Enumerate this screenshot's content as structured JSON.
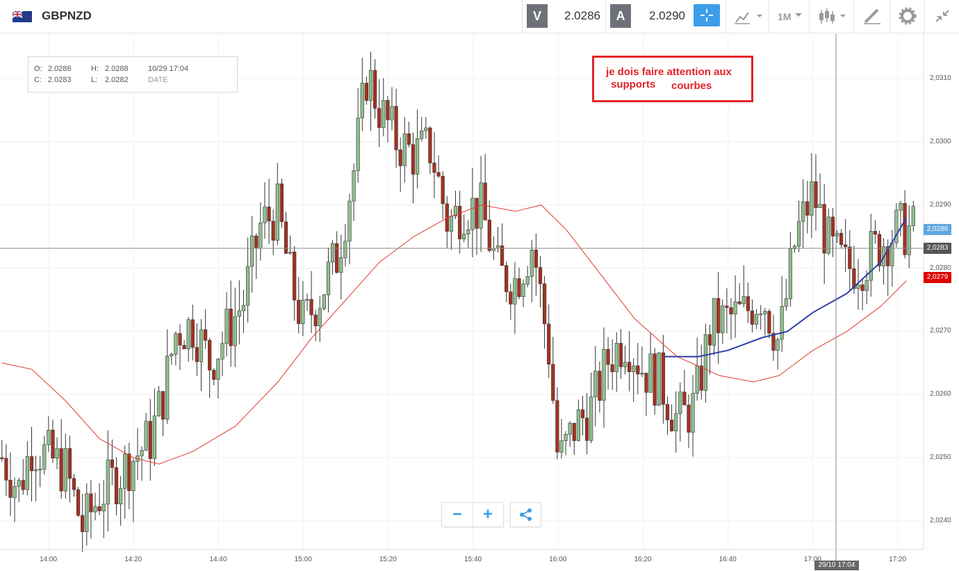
{
  "header": {
    "symbol": "GBPNZD",
    "sell_label": "V",
    "sell_price": "2.0286",
    "buy_label": "A",
    "buy_price": "2.0290",
    "timeframe": "1M"
  },
  "ohlc": {
    "o_label": "O:",
    "o_value": "2.0286",
    "h_label": "H:",
    "h_value": "2.0288",
    "c_label": "C:",
    "c_value": "2.0283",
    "l_label": "L:",
    "l_value": "2.0282",
    "datetime": "10/29 17:04",
    "date_label": "DATE"
  },
  "annotation": {
    "line1": "je dois faire attention aux",
    "line2a": "supports",
    "line2b": "courbes"
  },
  "zoom": {
    "minus": "−",
    "plus": "+"
  },
  "price_labels": {
    "current": "2,0286",
    "crosshair": "2,0283",
    "ma": "2,0279"
  },
  "crosshair_date": "29/10 17:04",
  "colors": {
    "up": "#8fbf8f",
    "down": "#a33222",
    "ma_red": "#e03a2f",
    "ma_blue": "#2f3fa8",
    "accent_blue": "#3d9de8",
    "label_red": "#e00000"
  },
  "chart_data": {
    "type": "candlestick",
    "ylim": [
      2.0236,
      2.0318
    ],
    "y_ticks": [
      "2,0310",
      "2,0300",
      "2,0290",
      "2,0280",
      "2,0270",
      "2,0260",
      "2,0250",
      "2,0240"
    ],
    "x_ticks": [
      "14:00",
      "14:20",
      "14:40",
      "15:00",
      "15:20",
      "15:40",
      "16:00",
      "16:20",
      "16:40",
      "17:00",
      "17:20"
    ],
    "price_points": [
      {
        "t": "13:49",
        "p": 2.025
      },
      {
        "t": "13:53",
        "p": 2.0245
      },
      {
        "t": "13:56",
        "p": 2.0252
      },
      {
        "t": "14:00",
        "p": 2.025
      },
      {
        "t": "14:04",
        "p": 2.0248
      },
      {
        "t": "14:08",
        "p": 2.0239
      },
      {
        "t": "14:12",
        "p": 2.0244
      },
      {
        "t": "14:16",
        "p": 2.0247
      },
      {
        "t": "14:20",
        "p": 2.025
      },
      {
        "t": "14:24",
        "p": 2.0253
      },
      {
        "t": "14:27",
        "p": 2.026
      },
      {
        "t": "14:30",
        "p": 2.027
      },
      {
        "t": "14:34",
        "p": 2.0271
      },
      {
        "t": "14:38",
        "p": 2.0265
      },
      {
        "t": "14:42",
        "p": 2.027
      },
      {
        "t": "14:46",
        "p": 2.0275
      },
      {
        "t": "14:50",
        "p": 2.0287
      },
      {
        "t": "14:54",
        "p": 2.0289
      },
      {
        "t": "14:57",
        "p": 2.0278
      },
      {
        "t": "15:00",
        "p": 2.0271
      },
      {
        "t": "15:04",
        "p": 2.0276
      },
      {
        "t": "15:08",
        "p": 2.0282
      },
      {
        "t": "15:12",
        "p": 2.0296
      },
      {
        "t": "15:15",
        "p": 2.0311
      },
      {
        "t": "15:18",
        "p": 2.0305
      },
      {
        "t": "15:22",
        "p": 2.03
      },
      {
        "t": "15:26",
        "p": 2.0298
      },
      {
        "t": "15:30",
        "p": 2.0299
      },
      {
        "t": "15:34",
        "p": 2.0287
      },
      {
        "t": "15:38",
        "p": 2.029
      },
      {
        "t": "15:42",
        "p": 2.0289
      },
      {
        "t": "15:46",
        "p": 2.0279
      },
      {
        "t": "15:50",
        "p": 2.0278
      },
      {
        "t": "15:54",
        "p": 2.0284
      },
      {
        "t": "15:58",
        "p": 2.0266
      },
      {
        "t": "16:00",
        "p": 2.0249
      },
      {
        "t": "16:04",
        "p": 2.0255
      },
      {
        "t": "16:08",
        "p": 2.0258
      },
      {
        "t": "16:12",
        "p": 2.0266
      },
      {
        "t": "16:16",
        "p": 2.0269
      },
      {
        "t": "16:20",
        "p": 2.0264
      },
      {
        "t": "16:24",
        "p": 2.0262
      },
      {
        "t": "16:28",
        "p": 2.0256
      },
      {
        "t": "16:32",
        "p": 2.0258
      },
      {
        "t": "16:36",
        "p": 2.0271
      },
      {
        "t": "16:40",
        "p": 2.0272
      },
      {
        "t": "16:44",
        "p": 2.0273
      },
      {
        "t": "16:48",
        "p": 2.0276
      },
      {
        "t": "16:52",
        "p": 2.0268
      },
      {
        "t": "16:56",
        "p": 2.0285
      },
      {
        "t": "17:00",
        "p": 2.0292
      },
      {
        "t": "17:04",
        "p": 2.0283
      },
      {
        "t": "17:08",
        "p": 2.028
      },
      {
        "t": "17:12",
        "p": 2.0281
      },
      {
        "t": "17:16",
        "p": 2.0284
      },
      {
        "t": "17:20",
        "p": 2.0286
      },
      {
        "t": "17:22",
        "p": 2.0286
      }
    ],
    "ma_red": [
      {
        "t": "13:49",
        "p": 2.0265
      },
      {
        "t": "13:56",
        "p": 2.0264
      },
      {
        "t": "14:04",
        "p": 2.0259
      },
      {
        "t": "14:12",
        "p": 2.0253
      },
      {
        "t": "14:20",
        "p": 2.025
      },
      {
        "t": "14:26",
        "p": 2.0249
      },
      {
        "t": "14:34",
        "p": 2.0251
      },
      {
        "t": "14:44",
        "p": 2.0255
      },
      {
        "t": "14:54",
        "p": 2.0262
      },
      {
        "t": "15:02",
        "p": 2.0269
      },
      {
        "t": "15:10",
        "p": 2.0275
      },
      {
        "t": "15:18",
        "p": 2.0281
      },
      {
        "t": "15:26",
        "p": 2.0285
      },
      {
        "t": "15:34",
        "p": 2.0288
      },
      {
        "t": "15:42",
        "p": 2.029
      },
      {
        "t": "15:50",
        "p": 2.0289
      },
      {
        "t": "15:56",
        "p": 2.029
      },
      {
        "t": "16:02",
        "p": 2.0286
      },
      {
        "t": "16:10",
        "p": 2.0279
      },
      {
        "t": "16:18",
        "p": 2.0272
      },
      {
        "t": "16:28",
        "p": 2.0266
      },
      {
        "t": "16:38",
        "p": 2.0263
      },
      {
        "t": "16:46",
        "p": 2.0262
      },
      {
        "t": "16:52",
        "p": 2.0263
      },
      {
        "t": "17:00",
        "p": 2.0267
      },
      {
        "t": "17:08",
        "p": 2.027
      },
      {
        "t": "17:16",
        "p": 2.0274
      },
      {
        "t": "17:22",
        "p": 2.0278
      }
    ],
    "ma_blue": [
      {
        "t": "16:25",
        "p": 2.0266
      },
      {
        "t": "16:33",
        "p": 2.0266
      },
      {
        "t": "16:40",
        "p": 2.0267
      },
      {
        "t": "16:48",
        "p": 2.0269
      },
      {
        "t": "16:54",
        "p": 2.027
      },
      {
        "t": "17:00",
        "p": 2.0273
      },
      {
        "t": "17:08",
        "p": 2.0276
      },
      {
        "t": "17:16",
        "p": 2.0281
      },
      {
        "t": "17:22",
        "p": 2.0288
      }
    ]
  }
}
